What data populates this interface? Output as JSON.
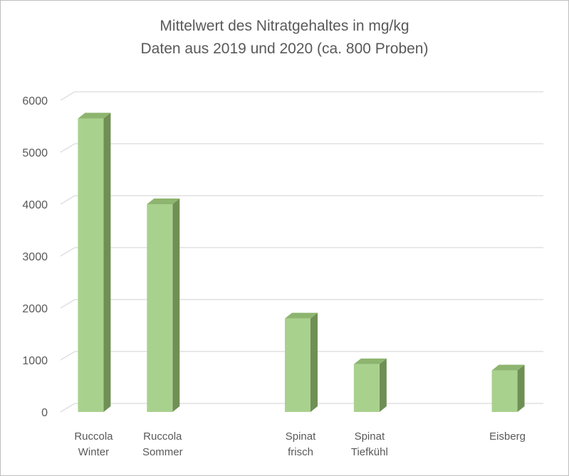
{
  "chart_data": {
    "type": "bar",
    "title": "Mittelwert des Nitratgehaltes in mg/kg",
    "subtitle": "Daten aus 2019 und 2020 (ca. 800 Proben)",
    "xlabel": "",
    "ylabel": "",
    "ylim": [
      0,
      6000
    ],
    "yticks": [
      0,
      1000,
      2000,
      3000,
      4000,
      5000,
      6000
    ],
    "grid": true,
    "legend": "none",
    "categories": [
      [
        "Ruccola",
        "Winter"
      ],
      [
        "Ruccola",
        "Sommer"
      ],
      [
        "",
        ""
      ],
      [
        "Spinat",
        "frisch"
      ],
      [
        "Spinat",
        "Tiefkühl"
      ],
      [
        "",
        ""
      ],
      [
        "Eisberg",
        ""
      ]
    ],
    "values": [
      5650,
      4000,
      null,
      1800,
      920,
      null,
      800
    ],
    "colors": {
      "bar_front": "#a9d18e",
      "bar_side": "#6f8f55",
      "bar_top": "#8eb56f",
      "grid": "#d9d9d9",
      "text": "#595959"
    }
  }
}
